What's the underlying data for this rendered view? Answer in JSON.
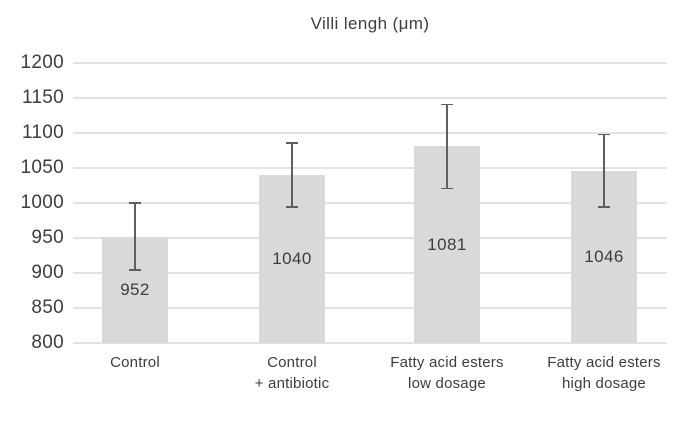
{
  "chart_data": {
    "type": "bar",
    "title": "Villi lengh (μm)",
    "categories": [
      "Control",
      "Control + antibiotic",
      "Fatty acid esters low dosage",
      "Fatty acid esters high dosage"
    ],
    "label_lines": [
      [
        "Control"
      ],
      [
        "Control",
        "+ antibiotic"
      ],
      [
        "Fatty acid esters",
        "low dosage"
      ],
      [
        "Fatty acid esters",
        "high dosage"
      ]
    ],
    "values": [
      952,
      1040,
      1081,
      1046
    ],
    "error_low": [
      904,
      994,
      1021,
      994
    ],
    "error_high": [
      1000,
      1086,
      1141,
      1098
    ],
    "xlabel": "",
    "ylabel": "",
    "ylim": [
      800,
      1200
    ],
    "yticks": [
      1200,
      1150,
      1100,
      1050,
      1000,
      950,
      900,
      850,
      800
    ],
    "grid": true,
    "legend": "none",
    "bar_color": "#d9d9d9",
    "error_bar_color": "#5f5f5f",
    "gridline_color": "#e2e2e2",
    "text_color": "#3d3d3d",
    "background_color": "#ffffff"
  }
}
